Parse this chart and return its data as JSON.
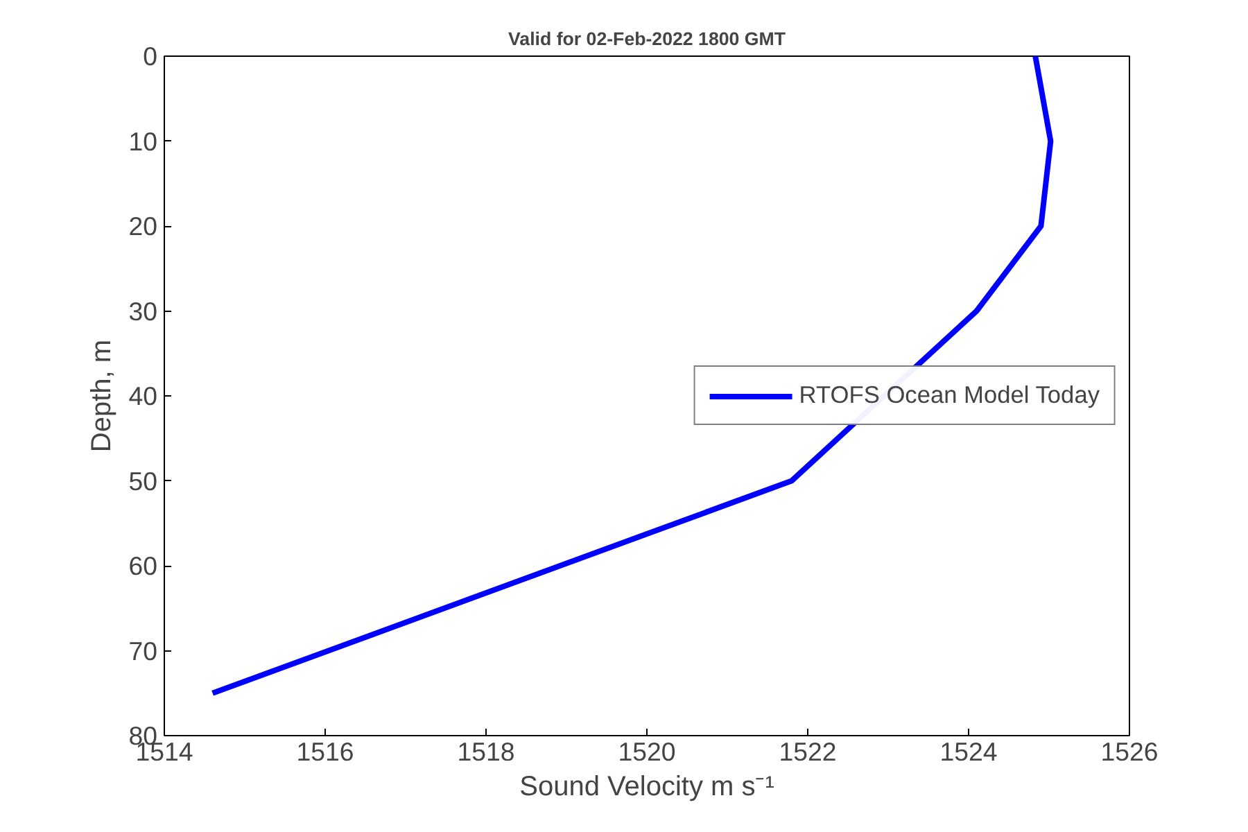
{
  "chart_data": {
    "type": "line",
    "title": "Valid for 02-Feb-2022 1800 GMT",
    "xlabel": "Sound Velocity m s⁻¹",
    "ylabel": "Depth, m",
    "x": [
      1524.83,
      1525.02,
      1524.9,
      1524.1,
      1521.8,
      1514.6
    ],
    "series": [
      {
        "name": "RTOFS Ocean Model Today",
        "color": "#0000ff",
        "values": [
          0,
          10,
          20,
          30,
          50,
          75
        ]
      }
    ],
    "xlim": [
      1514,
      1526
    ],
    "xticks": [
      1514,
      1516,
      1518,
      1520,
      1522,
      1524,
      1526
    ],
    "ylim": [
      80,
      0
    ],
    "yticks": [
      0,
      10,
      20,
      30,
      40,
      50,
      60,
      70,
      80
    ],
    "grid": false,
    "legend": "right",
    "marker": "none",
    "line_style": "solid"
  }
}
